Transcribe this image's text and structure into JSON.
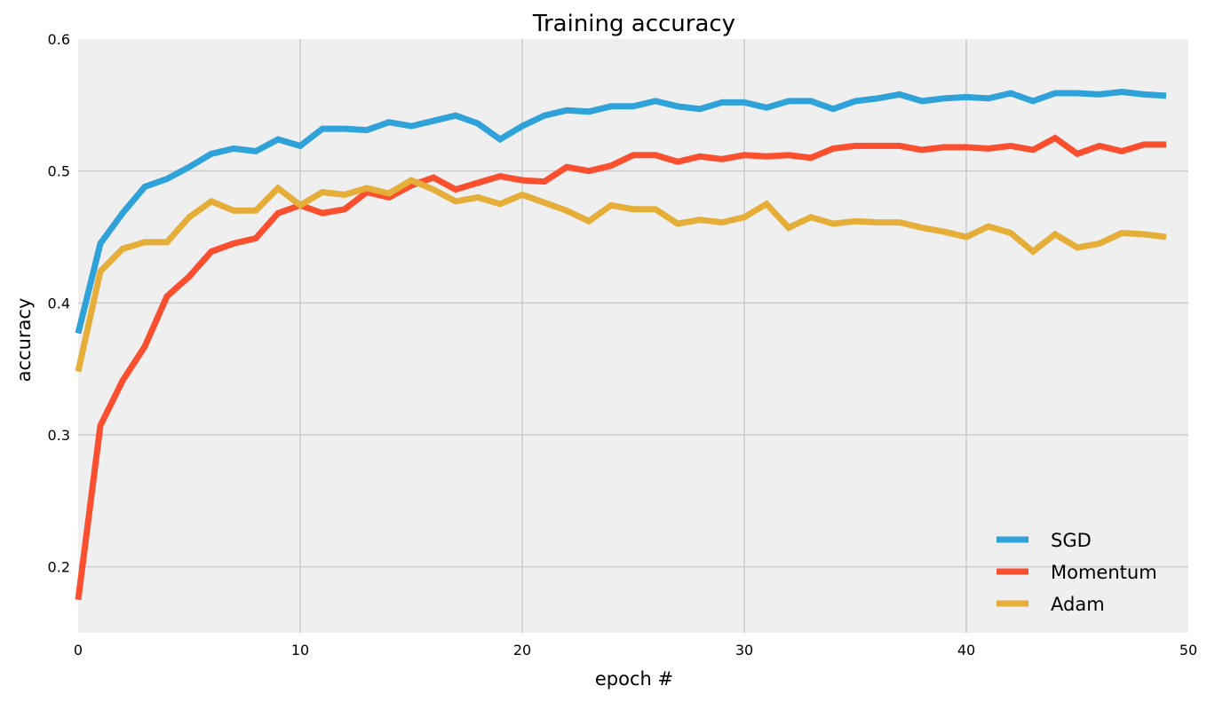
{
  "chart_data": {
    "type": "line",
    "title": "Training accuracy",
    "xlabel": "epoch #",
    "ylabel": "accuracy",
    "xlim": [
      0,
      50
    ],
    "ylim": [
      0.15,
      0.6
    ],
    "xticks": [
      0,
      10,
      20,
      30,
      40,
      50
    ],
    "yticks": [
      0.2,
      0.3,
      0.4,
      0.5,
      0.6
    ],
    "grid": true,
    "legend_position": "bottom-right",
    "x": [
      0,
      1,
      2,
      3,
      4,
      5,
      6,
      7,
      8,
      9,
      10,
      11,
      12,
      13,
      14,
      15,
      16,
      17,
      18,
      19,
      20,
      21,
      22,
      23,
      24,
      25,
      26,
      27,
      28,
      29,
      30,
      31,
      32,
      33,
      34,
      35,
      36,
      37,
      38,
      39,
      40,
      41,
      42,
      43,
      44,
      45,
      46,
      47,
      48,
      49
    ],
    "series": [
      {
        "name": "SGD",
        "color": "#30a2da",
        "values": [
          0.377,
          0.445,
          0.468,
          0.488,
          0.494,
          0.503,
          0.513,
          0.517,
          0.515,
          0.524,
          0.519,
          0.532,
          0.532,
          0.531,
          0.537,
          0.534,
          0.538,
          0.542,
          0.536,
          0.524,
          0.534,
          0.542,
          0.546,
          0.545,
          0.549,
          0.549,
          0.553,
          0.549,
          0.547,
          0.552,
          0.552,
          0.548,
          0.553,
          0.553,
          0.547,
          0.553,
          0.555,
          0.558,
          0.553,
          0.555,
          0.556,
          0.555,
          0.559,
          0.553,
          0.559,
          0.559,
          0.558,
          0.56,
          0.558,
          0.557
        ]
      },
      {
        "name": "Momentum",
        "color": "#fc4f30",
        "values": [
          0.175,
          0.307,
          0.341,
          0.367,
          0.405,
          0.42,
          0.439,
          0.445,
          0.449,
          0.468,
          0.474,
          0.468,
          0.471,
          0.484,
          0.48,
          0.489,
          0.495,
          0.486,
          0.491,
          0.496,
          0.493,
          0.492,
          0.503,
          0.5,
          0.504,
          0.512,
          0.512,
          0.507,
          0.511,
          0.509,
          0.512,
          0.511,
          0.512,
          0.51,
          0.517,
          0.519,
          0.519,
          0.519,
          0.516,
          0.518,
          0.518,
          0.517,
          0.519,
          0.516,
          0.525,
          0.513,
          0.519,
          0.515,
          0.52,
          0.52
        ]
      },
      {
        "name": "Adam",
        "color": "#e5ae38",
        "values": [
          0.348,
          0.424,
          0.441,
          0.446,
          0.446,
          0.465,
          0.477,
          0.47,
          0.47,
          0.487,
          0.474,
          0.484,
          0.482,
          0.487,
          0.483,
          0.493,
          0.486,
          0.477,
          0.48,
          0.475,
          0.482,
          0.476,
          0.47,
          0.462,
          0.474,
          0.471,
          0.471,
          0.46,
          0.463,
          0.461,
          0.465,
          0.475,
          0.457,
          0.465,
          0.46,
          0.462,
          0.461,
          0.461,
          0.457,
          0.454,
          0.45,
          0.458,
          0.453,
          0.439,
          0.452,
          0.442,
          0.445,
          0.453,
          0.452,
          0.45
        ]
      }
    ]
  }
}
